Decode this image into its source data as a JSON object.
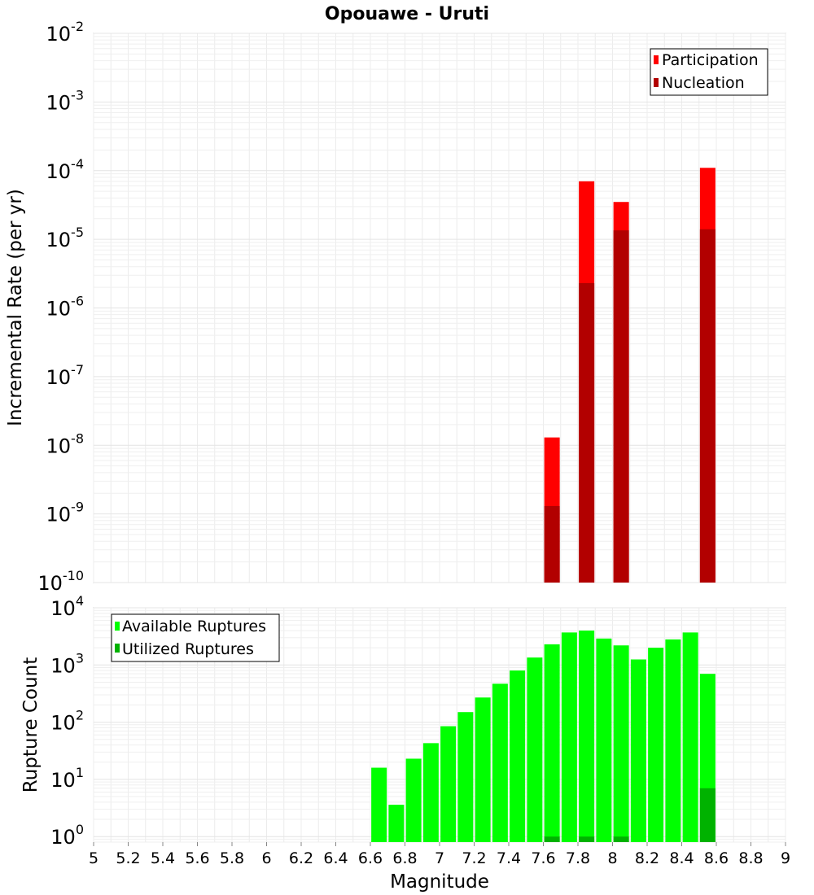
{
  "chart_data": [
    {
      "type": "bar",
      "title": "Opouawe - Uruti",
      "xlabel": "",
      "ylabel": "Incremental Rate (per yr)",
      "yscale": "log",
      "ylim": [
        1e-10,
        0.01
      ],
      "xlim": [
        5,
        9
      ],
      "x": [
        7.65,
        7.85,
        8.05,
        8.55
      ],
      "y_tick_labels": [
        {
          "base": "10",
          "exp": "-2"
        },
        {
          "base": "10",
          "exp": "-3"
        },
        {
          "base": "10",
          "exp": "-4"
        },
        {
          "base": "10",
          "exp": "-5"
        },
        {
          "base": "10",
          "exp": "-6"
        },
        {
          "base": "10",
          "exp": "-7"
        },
        {
          "base": "10",
          "exp": "-8"
        },
        {
          "base": "10",
          "exp": "-9"
        },
        {
          "base": "10",
          "exp": "-10"
        }
      ],
      "series": [
        {
          "name": "Participation",
          "color": "#ff0000",
          "values": [
            1.3e-08,
            7e-05,
            3.5e-05,
            0.00011
          ]
        },
        {
          "name": "Nucleation",
          "color": "#b20000",
          "values": [
            1.3e-09,
            2.3e-06,
            1.35e-05,
            1.4e-05
          ]
        }
      ],
      "legend_position": "top-right",
      "grid": true
    },
    {
      "type": "bar",
      "xlabel": "Magnitude",
      "ylabel": "Rupture Count",
      "yscale": "log",
      "ylim": [
        0.8,
        10000
      ],
      "xlim": [
        5,
        9
      ],
      "x": [
        6.65,
        6.75,
        6.85,
        6.95,
        7.05,
        7.15,
        7.25,
        7.35,
        7.45,
        7.55,
        7.65,
        7.75,
        7.85,
        7.95,
        8.05,
        8.15,
        8.25,
        8.35,
        8.45,
        8.55
      ],
      "x_tick_labels": [
        "5",
        "5.2",
        "5.4",
        "5.6",
        "5.8",
        "6",
        "6.2",
        "6.4",
        "6.6",
        "6.8",
        "7",
        "7.2",
        "7.4",
        "7.6",
        "7.8",
        "8",
        "8.2",
        "8.4",
        "8.6",
        "8.8",
        "9"
      ],
      "y_tick_labels": [
        {
          "base": "10",
          "exp": "4"
        },
        {
          "base": "10",
          "exp": "3"
        },
        {
          "base": "10",
          "exp": "2"
        },
        {
          "base": "10",
          "exp": "1"
        },
        {
          "base": "10",
          "exp": "0"
        }
      ],
      "series": [
        {
          "name": "Available Ruptures",
          "color": "#00ff00",
          "values": [
            16,
            3.6,
            23,
            43,
            85,
            150,
            270,
            470,
            800,
            1350,
            2300,
            3700,
            4000,
            2900,
            2200,
            1250,
            2000,
            2800,
            3700,
            700
          ]
        },
        {
          "name": "Utilized Ruptures",
          "color": "#00b200",
          "values": [
            0,
            0,
            0,
            0,
            0,
            0,
            0,
            0,
            0,
            0,
            1,
            0,
            1,
            0,
            1,
            0,
            0,
            0,
            0,
            7
          ]
        }
      ],
      "legend_position": "top-left",
      "grid": true
    }
  ]
}
